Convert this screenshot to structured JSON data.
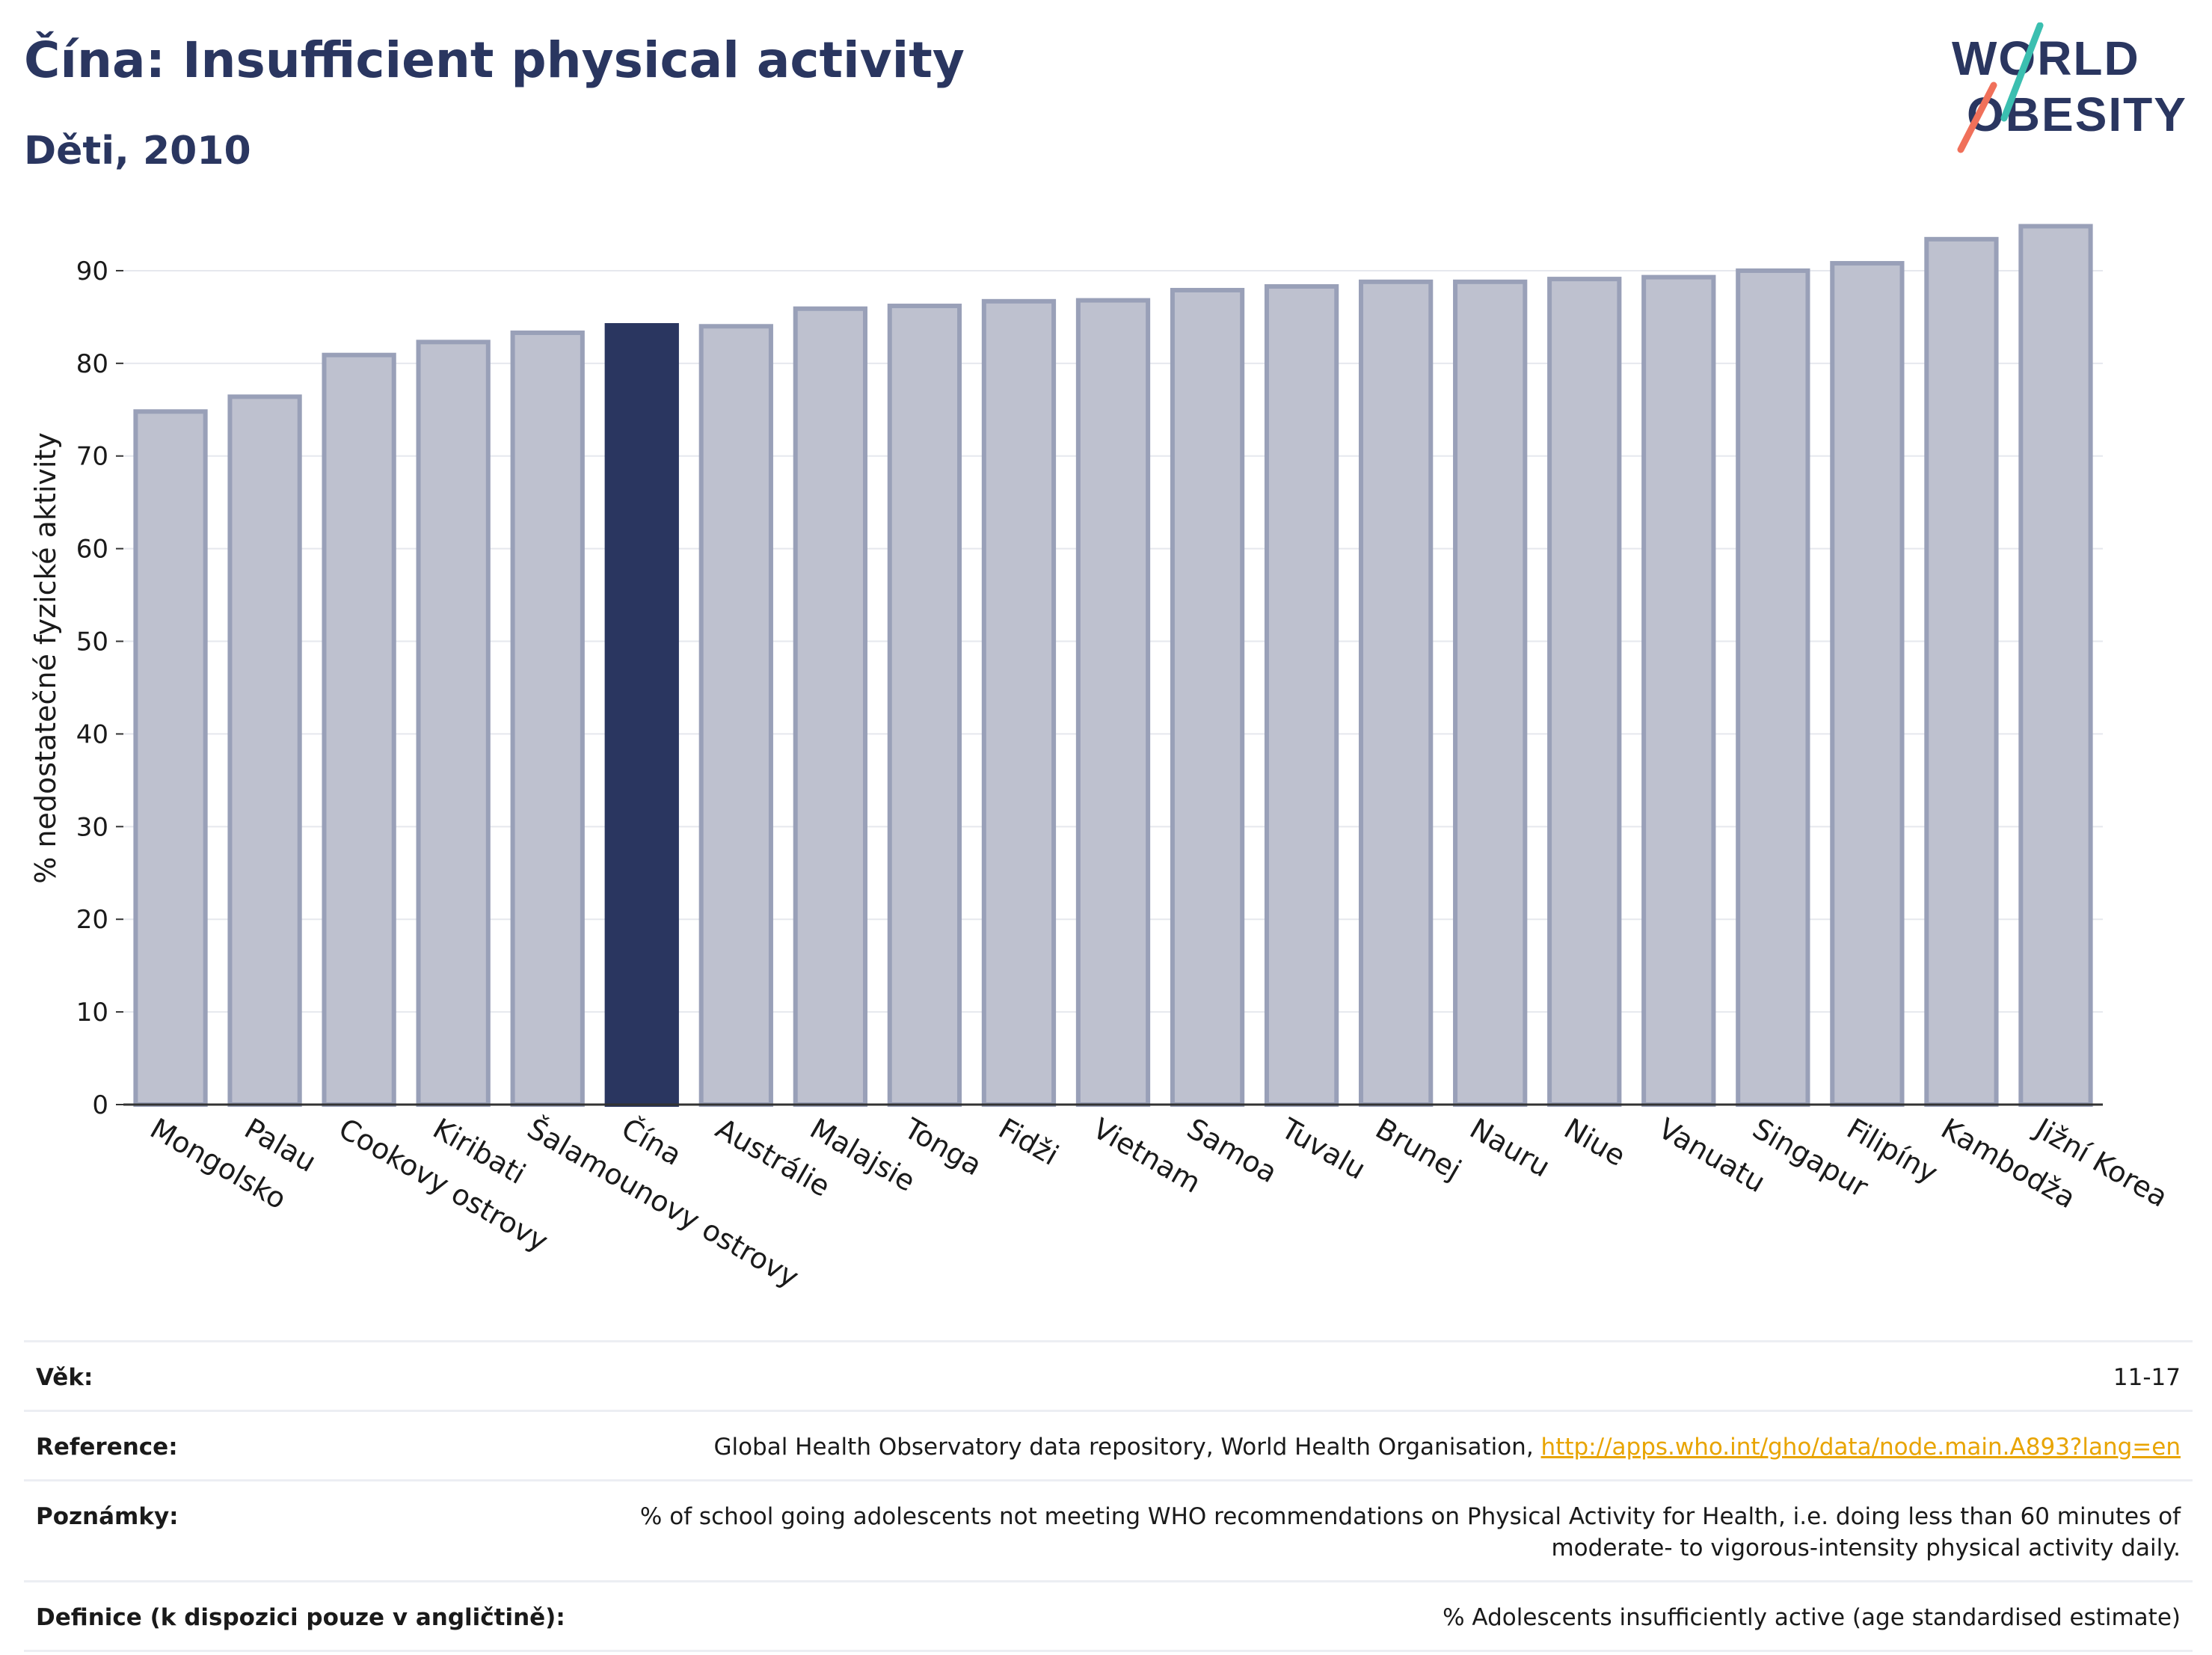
{
  "header": {
    "title": "Čína: Insufficient physical activity",
    "subtitle": "Děti, 2010"
  },
  "logo": {
    "line1": "WORLD",
    "line2": "OBESITY",
    "accent_teal": "#3bbfb0",
    "accent_coral": "#f0705a"
  },
  "colors": {
    "bar": "#bec1cf",
    "bar_border": "#99a0b8",
    "highlight": "#2a3660",
    "grid": "#e6e8ee",
    "axis": "#333333"
  },
  "chart_data": {
    "type": "bar",
    "title": "Čína: Insufficient physical activity",
    "subtitle": "Děti, 2010",
    "xlabel": "",
    "ylabel": "% nedostatečné fyzické aktivity",
    "ylim": [
      0,
      95
    ],
    "yticks": [
      0,
      10,
      20,
      30,
      40,
      50,
      60,
      70,
      80,
      90
    ],
    "grid": true,
    "highlight_category": "Čína",
    "categories": [
      "Mongolsko",
      "Palau",
      "Cookovy ostrovy",
      "Kiribati",
      "Šalamounovy ostrovy",
      "Čína",
      "Austrálie",
      "Malajsie",
      "Tonga",
      "Fidži",
      "Vietnam",
      "Samoa",
      "Tuvalu",
      "Brunej",
      "Nauru",
      "Niue",
      "Vanuatu",
      "Singapur",
      "Filipíny",
      "Kambodža",
      "Jižní Korea"
    ],
    "values": [
      74.8,
      76.4,
      80.9,
      82.3,
      83.3,
      84.1,
      84.0,
      85.9,
      86.2,
      86.7,
      86.8,
      87.9,
      88.3,
      88.8,
      88.8,
      89.1,
      89.3,
      90.0,
      90.8,
      93.4,
      94.8
    ]
  },
  "meta": {
    "age_label": "Věk:",
    "age_value": "11-17",
    "reference_label": "Reference:",
    "reference_text": "Global Health Observatory data repository, World Health Organisation, ",
    "reference_link": "http://apps.who.int/gho/data/node.main.A893?lang=en",
    "notes_label": "Poznámky:",
    "notes_value": "% of school going adolescents not meeting WHO recommendations on Physical Activity for Health, i.e. doing less than 60 minutes of moderate- to vigorous-intensity physical activity daily.",
    "definition_label": "Definice (k dispozici pouze v angličtině):",
    "definition_value": "% Adolescents insufficiently active (age standardised estimate)"
  }
}
